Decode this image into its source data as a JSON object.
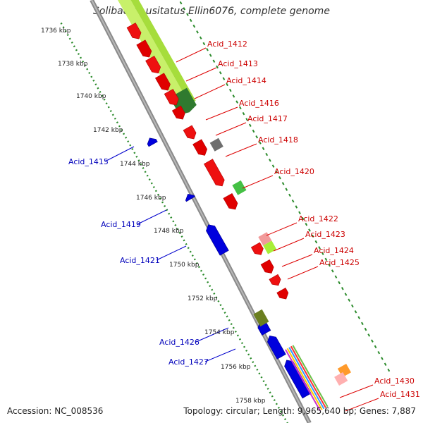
{
  "title": "Solibacter usitatus Ellin6076, complete genome",
  "footer": {
    "accession": "Accession: NC_008536",
    "summary": "Topology: circular; Length: 9,965,640 bp; Genes: 7,887"
  },
  "colors": {
    "forward_label": "#cc0000",
    "reverse_label": "#0000bb",
    "backbone": "#8a8a8a",
    "tick_ring": "#2a8a2a"
  },
  "kbp_ticks": [
    "1736 kbp",
    "1738 kbp",
    "1740 kbp",
    "1742 kbp",
    "1744 kbp",
    "1746 kbp",
    "1748 kbp",
    "1750 kbp",
    "1752 kbp",
    "1754 kbp",
    "1756 kbp",
    "1758 kbp"
  ],
  "forward_labels": [
    "Acid_1412",
    "Acid_1413",
    "Acid_1414",
    "Acid_1416",
    "Acid_1417",
    "Acid_1418",
    "Acid_1420",
    "Acid_1422",
    "Acid_1423",
    "Acid_1424",
    "Acid_1425",
    "Acid_1430",
    "Acid_1431"
  ],
  "reverse_labels": [
    "Acid_1415",
    "Acid_1419",
    "Acid_1421",
    "Acid_1426",
    "Acid_1427"
  ]
}
